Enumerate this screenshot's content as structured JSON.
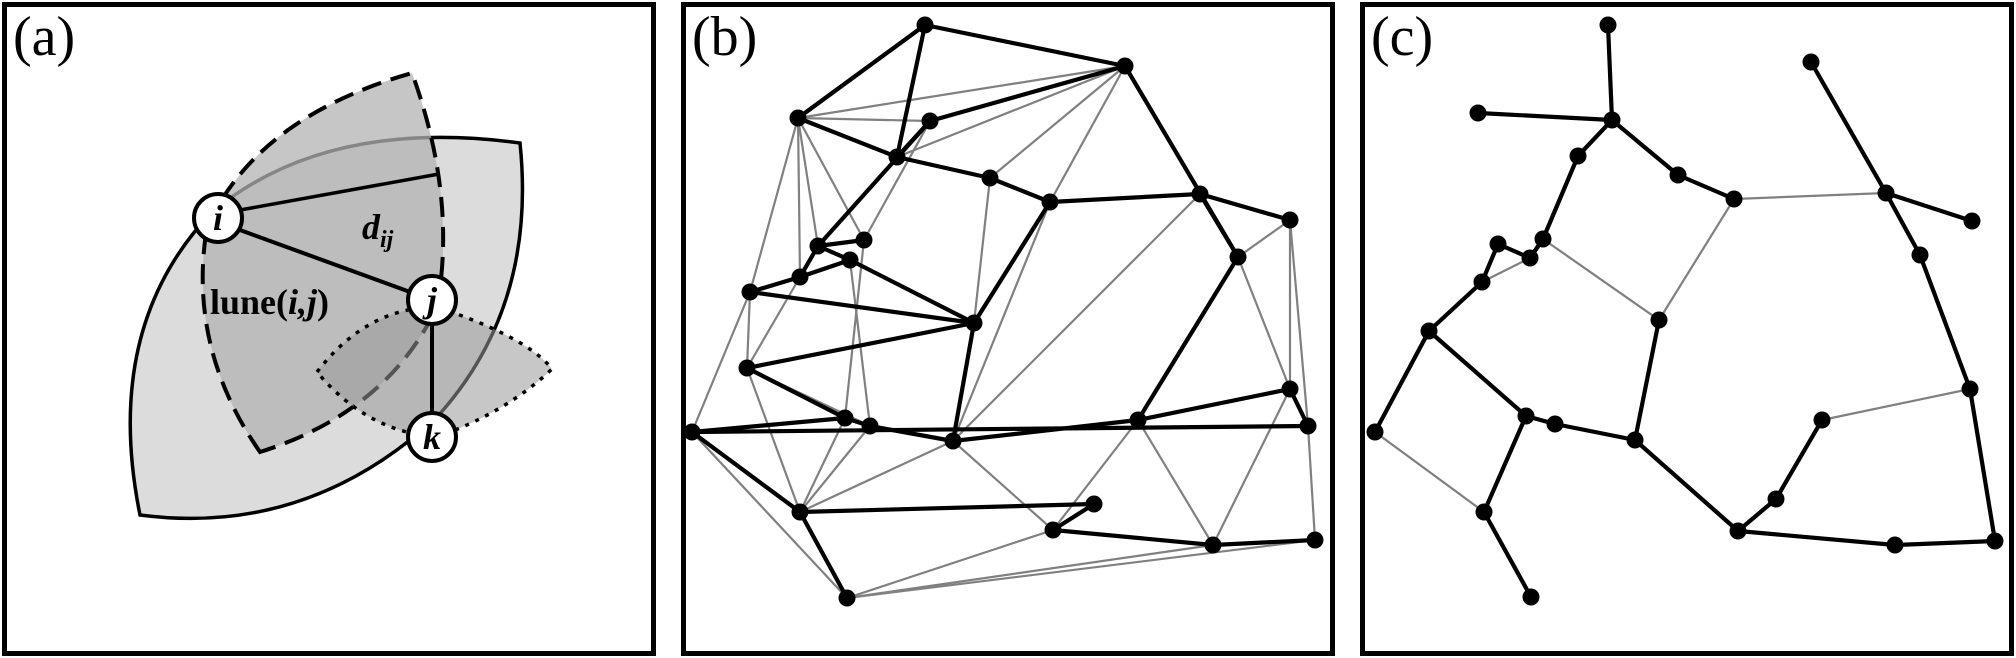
{
  "panels": {
    "a": {
      "label": "(a)",
      "nodes": {
        "i": "i",
        "j": "j",
        "k": "k"
      },
      "distance_label": "d",
      "distance_subscript": "ij",
      "lune_label": "lune(",
      "lune_args": "i,j",
      "lune_close": ")"
    },
    "b": {
      "label": "(b)",
      "points": [
        [
          925,
          25
        ],
        [
          1125,
          66
        ],
        [
          798,
          118
        ],
        [
          930,
          121
        ],
        [
          897,
          157
        ],
        [
          990,
          178
        ],
        [
          1050,
          202
        ],
        [
          1200,
          194
        ],
        [
          1290,
          220
        ],
        [
          818,
          246
        ],
        [
          800,
          277
        ],
        [
          850,
          260
        ],
        [
          864,
          240
        ],
        [
          750,
          292
        ],
        [
          1238,
          257
        ],
        [
          974,
          323
        ],
        [
          747,
          368
        ],
        [
          845,
          418
        ],
        [
          870,
          426
        ],
        [
          953,
          441
        ],
        [
          1138,
          420
        ],
        [
          1290,
          389
        ],
        [
          1308,
          426
        ],
        [
          692,
          432
        ],
        [
          800,
          512
        ],
        [
          1094,
          504
        ],
        [
          1053,
          530
        ],
        [
          1213,
          545
        ],
        [
          1315,
          540
        ],
        [
          847,
          598
        ]
      ],
      "mst_edges": [
        [
          0,
          1
        ],
        [
          0,
          2
        ],
        [
          1,
          3
        ],
        [
          0,
          4
        ],
        [
          4,
          5
        ],
        [
          5,
          6
        ],
        [
          6,
          7
        ],
        [
          7,
          8
        ],
        [
          3,
          9
        ],
        [
          9,
          10
        ],
        [
          9,
          11
        ],
        [
          9,
          12
        ],
        [
          10,
          13
        ],
        [
          13,
          15
        ],
        [
          11,
          15
        ],
        [
          15,
          16
        ],
        [
          15,
          19
        ],
        [
          16,
          17
        ],
        [
          17,
          18
        ],
        [
          18,
          19
        ],
        [
          19,
          20
        ],
        [
          20,
          21
        ],
        [
          21,
          22
        ],
        [
          22,
          23
        ],
        [
          17,
          23
        ],
        [
          23,
          24
        ],
        [
          24,
          25
        ],
        [
          25,
          26
        ],
        [
          26,
          27
        ],
        [
          27,
          28
        ],
        [
          24,
          29
        ],
        [
          6,
          15
        ],
        [
          7,
          14
        ],
        [
          14,
          20
        ],
        [
          1,
          14
        ],
        [
          3,
          4
        ],
        [
          2,
          4
        ],
        [
          11,
          10
        ]
      ],
      "extra_edges": [
        [
          0,
          1
        ],
        [
          1,
          2
        ],
        [
          1,
          4
        ],
        [
          1,
          5
        ],
        [
          1,
          6
        ],
        [
          1,
          7
        ],
        [
          2,
          3
        ],
        [
          2,
          9
        ],
        [
          2,
          10
        ],
        [
          2,
          12
        ],
        [
          2,
          13
        ],
        [
          3,
          12
        ],
        [
          5,
          15
        ],
        [
          6,
          15
        ],
        [
          6,
          19
        ],
        [
          7,
          19
        ],
        [
          8,
          14
        ],
        [
          8,
          21
        ],
        [
          8,
          22
        ],
        [
          10,
          16
        ],
        [
          12,
          17
        ],
        [
          11,
          18
        ],
        [
          16,
          18
        ],
        [
          18,
          24
        ],
        [
          17,
          24
        ],
        [
          16,
          13
        ],
        [
          19,
          24
        ],
        [
          19,
          26
        ],
        [
          20,
          26
        ],
        [
          20,
          27
        ],
        [
          21,
          27
        ],
        [
          22,
          28
        ],
        [
          23,
          29
        ],
        [
          24,
          29
        ],
        [
          26,
          29
        ],
        [
          27,
          29
        ],
        [
          28,
          29
        ],
        [
          16,
          24
        ],
        [
          14,
          21
        ],
        [
          13,
          23
        ]
      ]
    },
    "c": {
      "label": "(c)",
      "points": [
        [
          1608,
          25
        ],
        [
          1478,
          113
        ],
        [
          1612,
          120
        ],
        [
          1811,
          62
        ],
        [
          1578,
          156
        ],
        [
          1678,
          175
        ],
        [
          1734,
          199
        ],
        [
          1886,
          193
        ],
        [
          1972,
          221
        ],
        [
          1543,
          239
        ],
        [
          1498,
          244
        ],
        [
          1530,
          258
        ],
        [
          1482,
          282
        ],
        [
          1659,
          320
        ],
        [
          1920,
          255
        ],
        [
          1429,
          331
        ],
        [
          1526,
          416
        ],
        [
          1555,
          424
        ],
        [
          1635,
          440
        ],
        [
          1822,
          420
        ],
        [
          1970,
          389
        ],
        [
          1375,
          432
        ],
        [
          1484,
          512
        ],
        [
          1776,
          499
        ],
        [
          1738,
          531
        ],
        [
          1895,
          545
        ],
        [
          1995,
          541
        ],
        [
          1531,
          597
        ]
      ],
      "mst_edges": [
        [
          0,
          2
        ],
        [
          1,
          2
        ],
        [
          2,
          4
        ],
        [
          2,
          5
        ],
        [
          5,
          6
        ],
        [
          3,
          7
        ],
        [
          7,
          8
        ],
        [
          7,
          14
        ],
        [
          14,
          20
        ],
        [
          20,
          26
        ],
        [
          25,
          26
        ],
        [
          24,
          25
        ],
        [
          19,
          23
        ],
        [
          23,
          24
        ],
        [
          18,
          24
        ],
        [
          13,
          18
        ],
        [
          4,
          9
        ],
        [
          9,
          11
        ],
        [
          10,
          11
        ],
        [
          10,
          12
        ],
        [
          12,
          15
        ],
        [
          15,
          16
        ],
        [
          16,
          17
        ],
        [
          17,
          18
        ],
        [
          16,
          22
        ],
        [
          15,
          21
        ],
        [
          22,
          27
        ],
        [
          11,
          9
        ]
      ],
      "extra_edges": [
        [
          6,
          7
        ],
        [
          9,
          13
        ],
        [
          13,
          6
        ],
        [
          19,
          20
        ],
        [
          21,
          22
        ],
        [
          12,
          11
        ]
      ]
    }
  }
}
